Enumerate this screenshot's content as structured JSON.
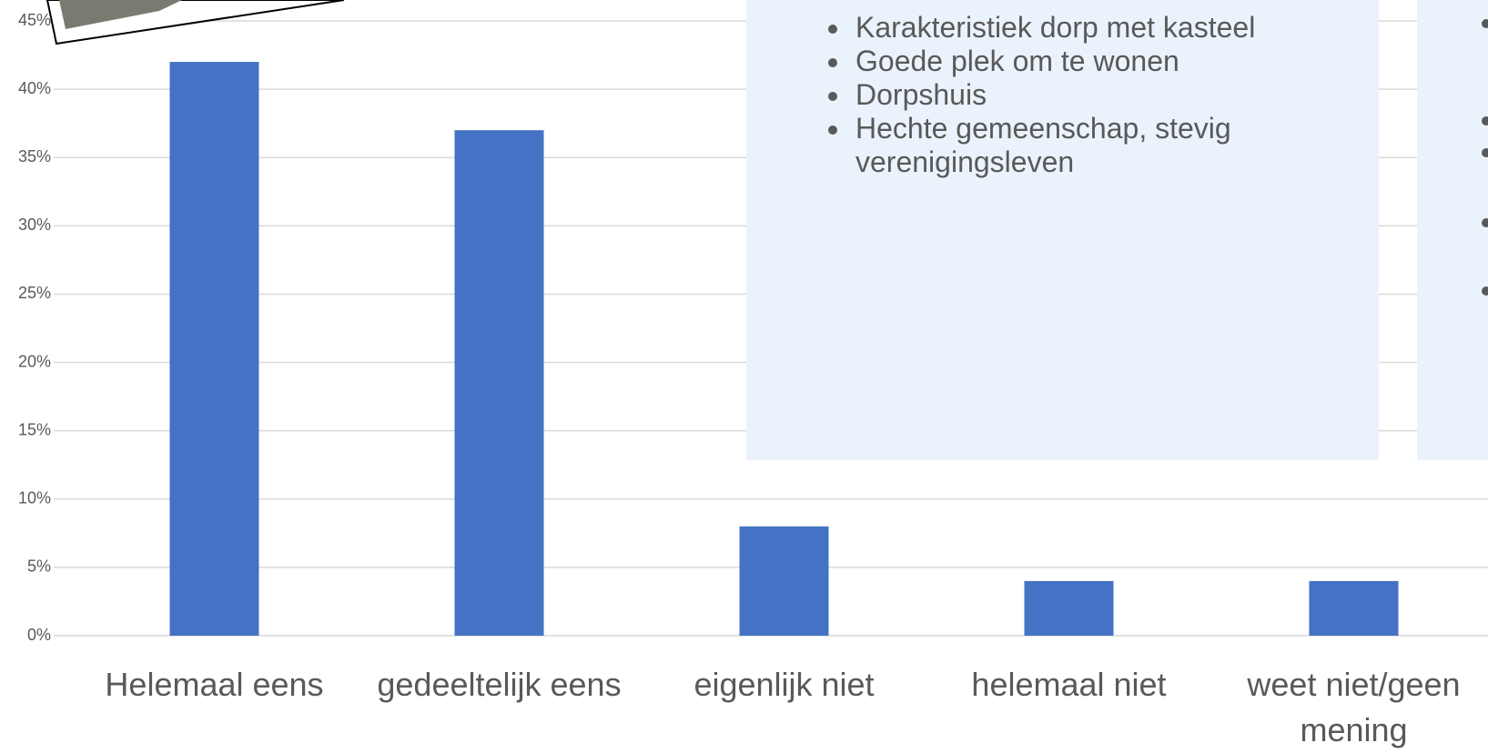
{
  "chart_data": {
    "type": "bar",
    "categories": [
      "Helemaal eens",
      "gedeeltelijk eens",
      "eigenlijk niet",
      "helemaal niet",
      "weet niet/geen mening"
    ],
    "values": [
      42,
      37,
      8,
      4,
      4
    ],
    "color": "#4472c4",
    "ylim": [
      0,
      45
    ],
    "yticks": [
      {
        "value": 0,
        "label": "0%"
      },
      {
        "value": 5,
        "label": "5%"
      },
      {
        "value": 10,
        "label": "10%"
      },
      {
        "value": 15,
        "label": "15%"
      },
      {
        "value": 20,
        "label": "20%"
      },
      {
        "value": 25,
        "label": "25%"
      },
      {
        "value": 30,
        "label": "30%"
      },
      {
        "value": 35,
        "label": "35%"
      },
      {
        "value": 40,
        "label": "40%"
      },
      {
        "value": 45,
        "label": "45%"
      }
    ],
    "grid": true
  },
  "text_box": {
    "bullets": [
      "Karakteristiek dorp met kasteel",
      "Goede plek om te wonen",
      "Dorpshuis",
      "Hechte gemeenschap, stevig verenigingsleven"
    ]
  }
}
